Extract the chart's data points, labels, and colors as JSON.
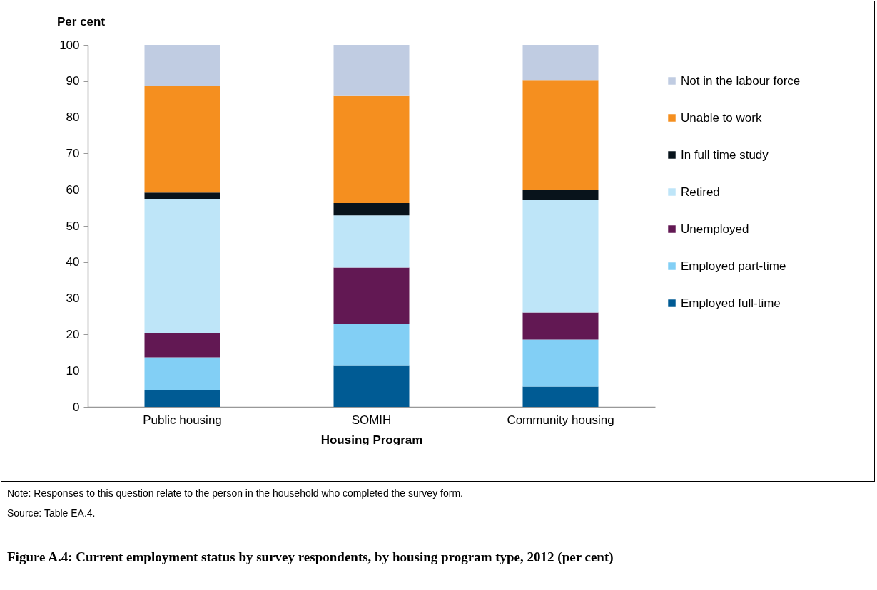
{
  "chart_data": {
    "type": "bar",
    "stacked": true,
    "title": "Figure A.4: Current employment status by survey respondents, by housing program type, 2012 (per cent)",
    "xlabel": "Housing Program",
    "ylabel": "Per cent",
    "categories": [
      "Public housing",
      "SOMIH",
      "Community housing"
    ],
    "series": [
      {
        "name": "Employed full-time",
        "color": "#005b94",
        "values": [
          4.6,
          11.5,
          5.6
        ]
      },
      {
        "name": "Employed part-time",
        "color": "#82cff5",
        "values": [
          9.1,
          11.4,
          13.0
        ]
      },
      {
        "name": "Unemployed",
        "color": "#621853",
        "values": [
          6.6,
          15.6,
          7.5
        ]
      },
      {
        "name": "Retired",
        "color": "#bee5f8",
        "values": [
          37.2,
          14.4,
          31.0
        ]
      },
      {
        "name": "In full time study",
        "color": "#08131b",
        "values": [
          1.7,
          3.4,
          2.9
        ]
      },
      {
        "name": "Unable to work",
        "color": "#f58f1f",
        "values": [
          29.6,
          29.6,
          30.3
        ]
      },
      {
        "name": "Not in the labour force",
        "color": "#c0cce2",
        "values": [
          11.2,
          14.1,
          9.7
        ]
      }
    ],
    "ylim": [
      0,
      100
    ],
    "yticks": [
      0,
      10,
      20,
      30,
      40,
      50,
      60,
      70,
      80,
      90,
      100
    ],
    "grid": false,
    "legend": "right",
    "annotations": [
      "Note: Responses to this question relate to the person in the household who completed the survey form.",
      "Source: Table EA.4."
    ]
  }
}
